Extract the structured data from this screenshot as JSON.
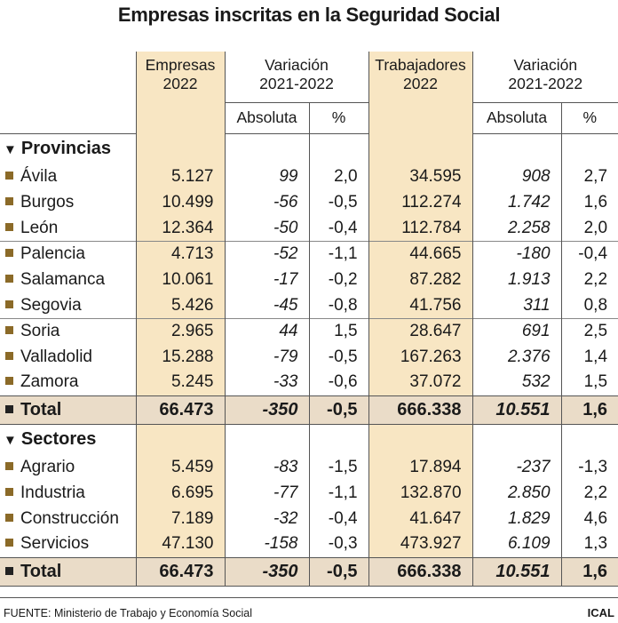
{
  "title": "Empresas inscritas en la Seguridad Social",
  "headers": {
    "empresas": [
      "Empresas",
      "2022"
    ],
    "variacion1": [
      "Variación",
      "2021-2022"
    ],
    "trabajadores": [
      "Trabajadores",
      "2022"
    ],
    "variacion2": [
      "Variación",
      "2021-2022"
    ],
    "absoluta": "Absoluta",
    "pct": "%"
  },
  "colors": {
    "empresas_column": "#f8e6c3",
    "total_row": "#eadcc8",
    "bullet": "#8b6a28"
  },
  "chart_data": {
    "type": "table",
    "title": "Empresas inscritas en la Seguridad Social",
    "columns": [
      "Empresas 2022",
      "Variación 2021-2022 Absoluta",
      "Variación 2021-2022 %",
      "Trabajadores 2022",
      "Variación 2021-2022 Absoluta",
      "Variación 2021-2022 %"
    ],
    "sections": [
      {
        "name": "Provincias",
        "rows": [
          {
            "label": "Ávila",
            "values": [
              "5.127",
              "99",
              "2,0",
              "34.595",
              "908",
              "2,7"
            ],
            "group_break": false
          },
          {
            "label": "Burgos",
            "values": [
              "10.499",
              "-56",
              "-0,5",
              "112.274",
              "1.742",
              "1,6"
            ],
            "group_break": false
          },
          {
            "label": "León",
            "values": [
              "12.364",
              "-50",
              "-0,4",
              "112.784",
              "2.258",
              "2,0"
            ],
            "group_break": false
          },
          {
            "label": "Palencia",
            "values": [
              "4.713",
              "-52",
              "-1,1",
              "44.665",
              "-180",
              "-0,4"
            ],
            "group_break": true
          },
          {
            "label": "Salamanca",
            "values": [
              "10.061",
              "-17",
              "-0,2",
              "87.282",
              "1.913",
              "2,2"
            ],
            "group_break": false
          },
          {
            "label": "Segovia",
            "values": [
              "5.426",
              "-45",
              "-0,8",
              "41.756",
              "311",
              "0,8"
            ],
            "group_break": false
          },
          {
            "label": "Soria",
            "values": [
              "2.965",
              "44",
              "1,5",
              "28.647",
              "691",
              "2,5"
            ],
            "group_break": true
          },
          {
            "label": "Valladolid",
            "values": [
              "15.288",
              "-79",
              "-0,5",
              "167.263",
              "2.376",
              "1,4"
            ],
            "group_break": false
          },
          {
            "label": "Zamora",
            "values": [
              "5.245",
              "-33",
              "-0,6",
              "37.072",
              "532",
              "1,5"
            ],
            "group_break": false
          }
        ],
        "total": {
          "label": "Total",
          "values": [
            "66.473",
            "-350",
            "-0,5",
            "666.338",
            "10.551",
            "1,6"
          ]
        }
      },
      {
        "name": "Sectores",
        "rows": [
          {
            "label": "Agrario",
            "values": [
              "5.459",
              "-83",
              "-1,5",
              "17.894",
              "-237",
              "-1,3"
            ],
            "group_break": false
          },
          {
            "label": "Industria",
            "values": [
              "6.695",
              "-77",
              "-1,1",
              "132.870",
              "2.850",
              "2,2"
            ],
            "group_break": false
          },
          {
            "label": "Construcción",
            "values": [
              "7.189",
              "-32",
              "-0,4",
              "41.647",
              "1.829",
              "4,6"
            ],
            "group_break": false
          },
          {
            "label": "Servicios",
            "values": [
              "47.130",
              "-158",
              "-0,3",
              "473.927",
              "6.109",
              "1,3"
            ],
            "group_break": false
          }
        ],
        "total": {
          "label": "Total",
          "values": [
            "66.473",
            "-350",
            "-0,5",
            "666.338",
            "10.551",
            "1,6"
          ]
        }
      }
    ]
  },
  "footer": {
    "source": "FUENTE: Ministerio de Trabajo y Economía Social",
    "brand": "ICAL"
  }
}
